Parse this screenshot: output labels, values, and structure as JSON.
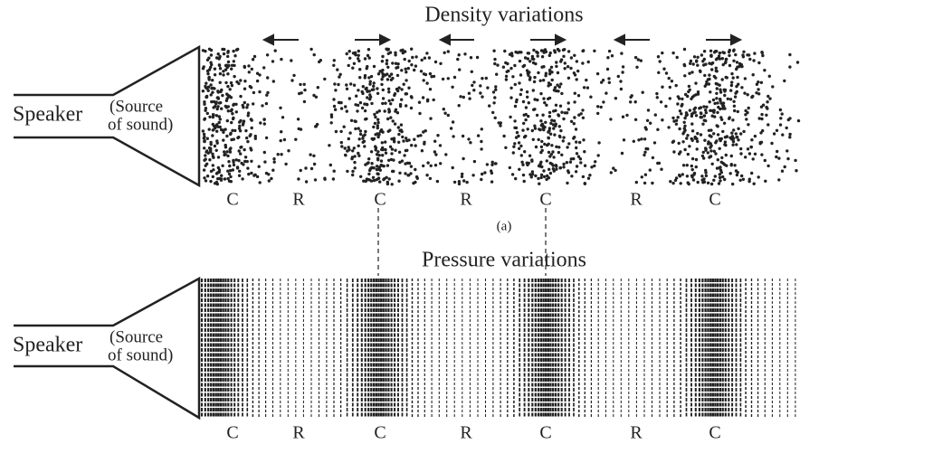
{
  "panel_a": {
    "title": "Density variations",
    "speaker": "Speaker",
    "source": [
      "(Source",
      "of sound)"
    ],
    "labels": [
      "C",
      "R",
      "C",
      "R",
      "C",
      "R",
      "C"
    ],
    "caption": "(a)"
  },
  "panel_b": {
    "title": "Pressure variations",
    "speaker": "Speaker",
    "source": [
      "(Source",
      "of sound)"
    ],
    "labels": [
      "C",
      "R",
      "C",
      "R",
      "C",
      "R",
      "C"
    ]
  }
}
